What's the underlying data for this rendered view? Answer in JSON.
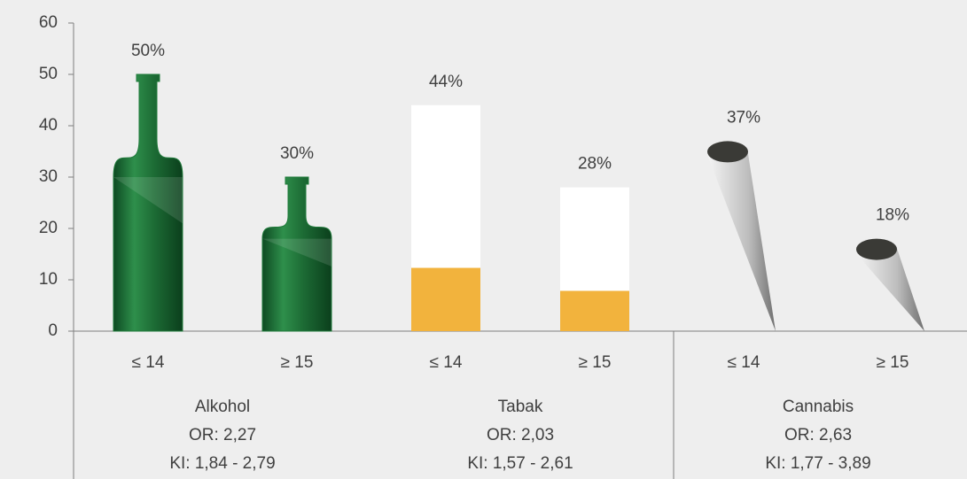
{
  "chart_data": {
    "type": "pictogram",
    "categories": [
      "≤ 14",
      "≥ 15",
      "≤ 14",
      "≥ 15",
      "≤ 14",
      "≥ 15"
    ],
    "values": [
      50,
      30,
      44,
      28,
      37,
      18
    ],
    "value_labels": [
      "50%",
      "30%",
      "44%",
      "28%",
      "37%",
      "18%"
    ],
    "groups": [
      {
        "name": "Alkohol",
        "lines": [
          "OR: 2,27",
          "KI: 1,84 - 2,79"
        ],
        "color": "#1f7a3a"
      },
      {
        "name": "Tabak",
        "lines": [
          "OR: 2,03",
          "KI: 1,57 - 2,61"
        ],
        "color": "#f2b33d"
      },
      {
        "name": "Cannabis",
        "lines": [
          "OR: 2,63",
          "KI: 1,77 - 3,89"
        ],
        "color": "#3a3a36"
      }
    ],
    "ylim": [
      0,
      60
    ],
    "yticks": [
      0,
      10,
      20,
      30,
      40,
      50,
      60
    ]
  }
}
